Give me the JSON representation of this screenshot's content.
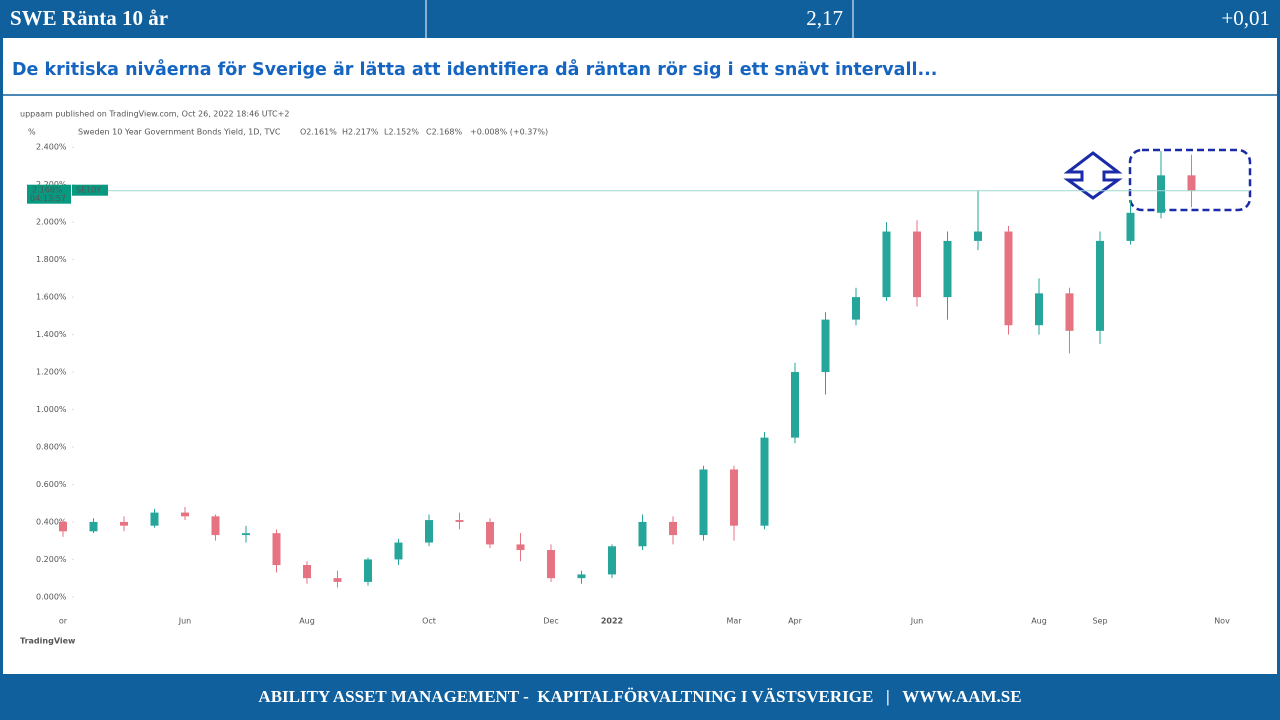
{
  "header": {
    "title": "SWE Ränta 10 år",
    "value": "2,17",
    "change": "+0,01"
  },
  "subtitle": "De kritiska nivåerna för Sverige är lätta att identifiera då räntan rör sig i ett snävt intervall...",
  "chart_data": {
    "type": "candlestick",
    "attribution": "uppaam published on TradingView.com, Oct 26, 2022 18:46 UTC+2",
    "unit_label": "%",
    "instrument": "Sweden 10 Year Government Bonds Yield, 1D, TVC",
    "ohlc_legend": [
      "O2.161%",
      "H2.217%",
      "L2.152%",
      "C2.168%",
      "+0.008% (+0.37%)"
    ],
    "categories": [
      "or",
      null,
      null,
      null,
      "Jun",
      null,
      null,
      null,
      "Aug",
      null,
      null,
      null,
      "Oct",
      null,
      null,
      null,
      "Dec",
      null,
      "2022",
      null,
      null,
      null,
      "Mar",
      null,
      "Apr",
      null,
      null,
      null,
      "Jun",
      null,
      null,
      null,
      "Aug",
      null,
      "Sep",
      null,
      null,
      null,
      "Nov"
    ],
    "open": [
      0.4,
      0.35,
      0.4,
      0.38,
      0.45,
      0.43,
      0.33,
      0.34,
      0.17,
      0.1,
      0.08,
      0.2,
      0.29,
      0.41,
      0.4,
      0.28,
      0.25,
      0.1,
      0.12,
      0.27,
      0.4,
      0.33,
      0.68,
      0.38,
      0.85,
      1.2,
      1.48,
      1.6,
      1.95,
      1.6,
      1.9,
      1.95,
      1.45,
      1.62,
      1.42,
      1.9,
      2.05,
      2.25,
      null
    ],
    "high": [
      0.41,
      0.42,
      0.43,
      0.47,
      0.48,
      0.44,
      0.38,
      0.36,
      0.19,
      0.14,
      0.21,
      0.31,
      0.44,
      0.45,
      0.42,
      0.34,
      0.28,
      0.14,
      0.28,
      0.44,
      0.43,
      0.7,
      0.7,
      0.88,
      1.25,
      1.52,
      1.65,
      2.0,
      2.01,
      1.95,
      2.17,
      1.98,
      1.7,
      1.65,
      1.95,
      2.12,
      2.38,
      2.36,
      null
    ],
    "low": [
      0.32,
      0.34,
      0.35,
      0.37,
      0.41,
      0.3,
      0.29,
      0.13,
      0.07,
      0.05,
      0.06,
      0.17,
      0.27,
      0.36,
      0.26,
      0.19,
      0.08,
      0.07,
      0.1,
      0.25,
      0.28,
      0.3,
      0.3,
      0.36,
      0.82,
      1.08,
      1.45,
      1.58,
      1.55,
      1.48,
      1.85,
      1.4,
      1.4,
      1.3,
      1.35,
      1.88,
      2.02,
      2.08,
      null
    ],
    "close": [
      0.35,
      0.4,
      0.38,
      0.45,
      0.43,
      0.33,
      0.34,
      0.17,
      0.1,
      0.08,
      0.2,
      0.29,
      0.41,
      0.4,
      0.28,
      0.25,
      0.1,
      0.12,
      0.27,
      0.4,
      0.33,
      0.68,
      0.38,
      0.85,
      1.2,
      1.48,
      1.6,
      1.95,
      1.6,
      1.9,
      1.95,
      1.45,
      1.62,
      1.42,
      1.9,
      2.05,
      2.25,
      2.168,
      null
    ],
    "up_color": "#26a69a",
    "down_color": "#e57382",
    "ylim": [
      -0.07,
      2.54
    ],
    "yticks": [
      {
        "value": 0,
        "label": "0.000%"
      },
      {
        "value": 0.2,
        "label": "0.200%"
      },
      {
        "value": 0.4,
        "label": "0.400%"
      },
      {
        "value": 0.6,
        "label": "0.600%"
      },
      {
        "value": 0.8,
        "label": "0.800%"
      },
      {
        "value": 1,
        "label": "1.000%"
      },
      {
        "value": 1.2,
        "label": "1.200%"
      },
      {
        "value": 1.4,
        "label": "1.400%"
      },
      {
        "value": 1.6,
        "label": "1.600%"
      },
      {
        "value": 1.8,
        "label": "1.800%"
      },
      {
        "value": 2,
        "label": "2.000%"
      },
      {
        "value": 2.2,
        "label": "2.200%"
      },
      {
        "value": 2.4,
        "label": "2.400%"
      }
    ],
    "last_price_label": "2.168%",
    "symbol": "SE10Y",
    "countdown": "04:13:57",
    "brand": "TradingView"
  },
  "footer": "ABILITY ASSET MANAGEMENT -  KAPITALFÖRVALTNING I VÄSTSVERIGE   |   WWW.AAM.SE"
}
